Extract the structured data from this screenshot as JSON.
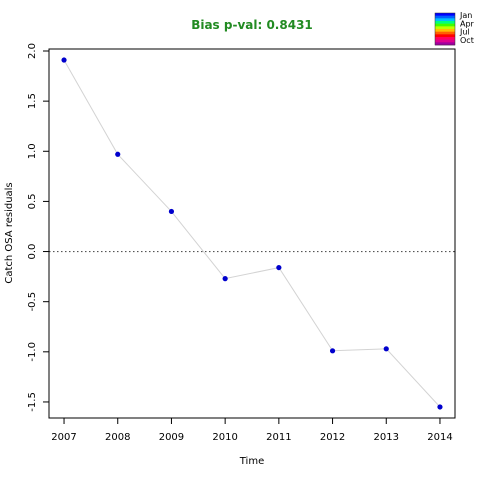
{
  "chart_data": {
    "type": "scatter",
    "title": "Bias p-val: 0.8431",
    "title_color": "#228B22",
    "xlabel": "Time",
    "ylabel": "Catch OSA residuals",
    "x": [
      2007,
      2008,
      2009,
      2010,
      2011,
      2012,
      2013,
      2014
    ],
    "y": [
      1.91,
      0.97,
      0.4,
      -0.27,
      -0.16,
      -0.99,
      -0.97,
      -1.55
    ],
    "xlim": [
      2006.72,
      2014.28
    ],
    "ylim": [
      -1.66,
      2.02
    ],
    "xticks": [
      "2007",
      "2008",
      "2009",
      "2010",
      "2011",
      "2012",
      "2013",
      "2014"
    ],
    "yticks": [
      "-1.5",
      "-1.0",
      "-0.5",
      "0.0",
      "0.5",
      "1.0",
      "1.5",
      "2.0"
    ],
    "ytick_values": [
      -1.5,
      -1.0,
      -0.5,
      0.0,
      0.5,
      1.0,
      1.5,
      2.0
    ],
    "reference_line": 0.0,
    "point_color": "#0000CD",
    "line_color": "#D3D3D3",
    "legend": {
      "position": "top-right",
      "labels": [
        "Jan",
        "Apr",
        "Jul",
        "Oct"
      ],
      "colors": [
        "#0000FF",
        "#0060FF",
        "#00C0FF",
        "#00FF80",
        "#40FF00",
        "#C0FF00",
        "#FFC000",
        "#FF6000",
        "#FF0000",
        "#FF0060",
        "#E00090",
        "#A000A0"
      ]
    }
  }
}
